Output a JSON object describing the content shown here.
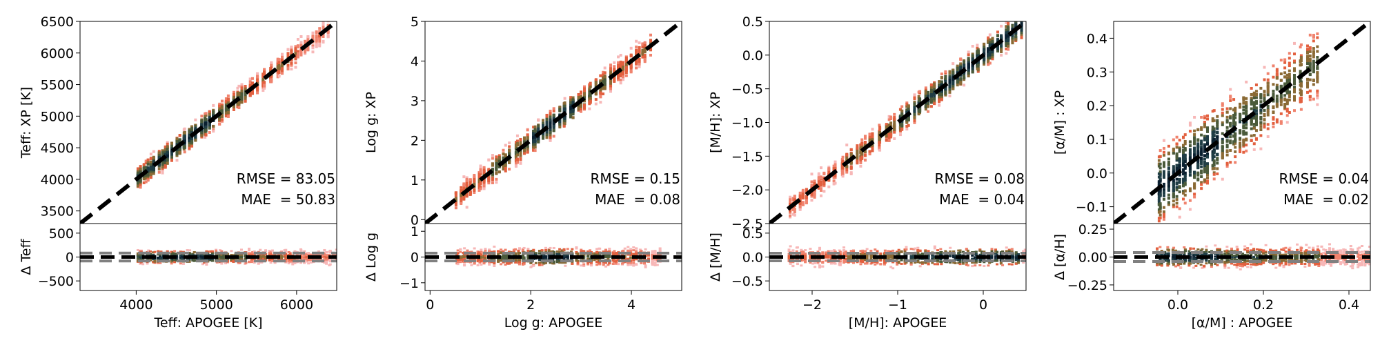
{
  "chart_data": [
    {
      "type": "heatmap",
      "title": "",
      "xlabel": "Teff: APOGEE [K]",
      "ylabel": "Teff: XP [K]",
      "resid_ylabel": "Δ Teff",
      "xlim": [
        3300,
        6500
      ],
      "ylim": [
        3300,
        6500
      ],
      "resid_ylim": [
        -700,
        700
      ],
      "xticks": [
        {
          "v": 4000,
          "label": "4000"
        },
        {
          "v": 5000,
          "label": "5000"
        },
        {
          "v": 6000,
          "label": "6000"
        }
      ],
      "yticks": [
        {
          "v": 3500,
          "label": "3500"
        },
        {
          "v": 4000,
          "label": "4000"
        },
        {
          "v": 4500,
          "label": "4500"
        },
        {
          "v": 5000,
          "label": "5000"
        },
        {
          "v": 5500,
          "label": "5500"
        },
        {
          "v": 6000,
          "label": "6000"
        },
        {
          "v": 6500,
          "label": "6500"
        }
      ],
      "resid_yticks": [
        {
          "v": -500,
          "label": "−500"
        },
        {
          "v": 0,
          "label": "0"
        },
        {
          "v": 500,
          "label": "500"
        }
      ],
      "one_to_one_line": true,
      "resid_bounds": [
        -83.05,
        83.05
      ],
      "density_segments": [
        [
          4000,
          4200,
          0.8
        ],
        [
          4200,
          4600,
          0.95
        ],
        [
          4600,
          5000,
          1.0
        ],
        [
          5000,
          5400,
          0.6
        ],
        [
          5400,
          6000,
          0.35
        ],
        [
          6000,
          6400,
          0.2
        ]
      ],
      "scatter_width": 0.05,
      "resid_width": 0.09,
      "x_resid_extent": [
        4000,
        6500
      ],
      "stats": {
        "rmse": "RMSE = 83.05",
        "mae": "MAE  = 50.83"
      }
    },
    {
      "type": "heatmap",
      "title": "",
      "xlabel": "Log g: APOGEE",
      "ylabel": "Log g: XP",
      "resid_ylabel": "Δ Log g",
      "xlim": [
        -0.1,
        5.0
      ],
      "ylim": [
        -0.1,
        5.0
      ],
      "resid_ylim": [
        -1.3,
        1.3
      ],
      "xticks": [
        {
          "v": 0,
          "label": "0"
        },
        {
          "v": 2,
          "label": "2"
        },
        {
          "v": 4,
          "label": "4"
        }
      ],
      "yticks": [
        {
          "v": 0,
          "label": "0"
        },
        {
          "v": 1,
          "label": "1"
        },
        {
          "v": 2,
          "label": "2"
        },
        {
          "v": 3,
          "label": "3"
        },
        {
          "v": 4,
          "label": "4"
        },
        {
          "v": 5,
          "label": "5"
        }
      ],
      "resid_yticks": [
        {
          "v": -1,
          "label": "−1"
        },
        {
          "v": 0,
          "label": "0"
        },
        {
          "v": 1,
          "label": "1"
        }
      ],
      "one_to_one_line": true,
      "resid_bounds": [
        -0.15,
        0.15
      ],
      "density_segments": [
        [
          0.5,
          1.2,
          0.35
        ],
        [
          1.2,
          2.0,
          0.6
        ],
        [
          2.0,
          2.9,
          1.0
        ],
        [
          2.9,
          3.6,
          0.55
        ],
        [
          3.6,
          4.4,
          0.35
        ]
      ],
      "scatter_width": 0.06,
      "resid_width": 0.12,
      "x_resid_extent": [
        0.5,
        4.6
      ],
      "stats": {
        "rmse": "RMSE = 0.15",
        "mae": "MAE  = 0.08"
      }
    },
    {
      "type": "heatmap",
      "title": "",
      "xlabel": "[M/H]: APOGEE",
      "ylabel": "[M/H]: XP",
      "resid_ylabel": "Δ [M/H]",
      "xlim": [
        -2.5,
        0.5
      ],
      "ylim": [
        -2.5,
        0.5
      ],
      "resid_ylim": [
        -0.7,
        0.7
      ],
      "xticks": [
        {
          "v": -2,
          "label": "−2"
        },
        {
          "v": -1,
          "label": "−1"
        },
        {
          "v": 0,
          "label": "0"
        }
      ],
      "yticks": [
        {
          "v": -2.5,
          "label": "−2.5"
        },
        {
          "v": -2.0,
          "label": "−2.0"
        },
        {
          "v": -1.5,
          "label": "−1.5"
        },
        {
          "v": -1.0,
          "label": "−1.0"
        },
        {
          "v": -0.5,
          "label": "−0.5"
        },
        {
          "v": 0.0,
          "label": "0.0"
        },
        {
          "v": 0.5,
          "label": "0.5"
        }
      ],
      "resid_yticks": [
        {
          "v": -0.5,
          "label": "−0.5"
        },
        {
          "v": 0.0,
          "label": "0.0"
        },
        {
          "v": 0.5,
          "label": "0.5"
        }
      ],
      "one_to_one_line": true,
      "resid_bounds": [
        -0.08,
        0.08
      ],
      "density_segments": [
        [
          -2.3,
          -1.6,
          0.25
        ],
        [
          -1.6,
          -1.0,
          0.45
        ],
        [
          -1.0,
          -0.5,
          0.8
        ],
        [
          -0.5,
          0.45,
          1.0
        ]
      ],
      "scatter_width": 0.06,
      "resid_width": 0.12,
      "x_resid_extent": [
        -2.3,
        0.5
      ],
      "stats": {
        "rmse": "RMSE = 0.08",
        "mae": "MAE  = 0.04"
      }
    },
    {
      "type": "heatmap",
      "title": "",
      "xlabel": "[α/M] : APOGEE",
      "ylabel": "[α/M] : XP",
      "resid_ylabel": "Δ [α/H]",
      "xlim": [
        -0.15,
        0.45
      ],
      "ylim": [
        -0.15,
        0.45
      ],
      "resid_ylim": [
        -0.3,
        0.3
      ],
      "xticks": [
        {
          "v": 0.0,
          "label": "0.0"
        },
        {
          "v": 0.2,
          "label": "0.2"
        },
        {
          "v": 0.4,
          "label": "0.4"
        }
      ],
      "yticks": [
        {
          "v": -0.1,
          "label": "−0.1"
        },
        {
          "v": 0.0,
          "label": "0.0"
        },
        {
          "v": 0.1,
          "label": "0.1"
        },
        {
          "v": 0.2,
          "label": "0.2"
        },
        {
          "v": 0.3,
          "label": "0.3"
        },
        {
          "v": 0.4,
          "label": "0.4"
        }
      ],
      "resid_yticks": [
        {
          "v": -0.25,
          "label": "−0.25"
        },
        {
          "v": 0.0,
          "label": "0.00"
        },
        {
          "v": 0.25,
          "label": "0.25"
        }
      ],
      "one_to_one_line": true,
      "resid_bounds": [
        -0.04,
        0.04
      ],
      "density_segments": [
        [
          -0.05,
          0.1,
          1.0
        ],
        [
          0.1,
          0.2,
          0.7
        ],
        [
          0.2,
          0.33,
          0.55
        ]
      ],
      "scatter_width": 0.16,
      "resid_width": 0.14,
      "x_resid_extent": [
        -0.05,
        0.45
      ],
      "stats": {
        "rmse": "RMSE = 0.04",
        "mae": "MAE  = 0.02"
      }
    }
  ]
}
